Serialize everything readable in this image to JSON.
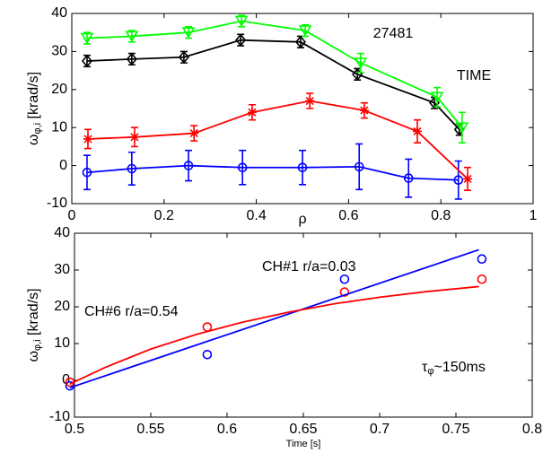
{
  "chart_data": [
    {
      "type": "line",
      "xlabel": "ρ",
      "ylabel": {
        "symbol": "ω",
        "subscript": "φ,i",
        "unit": " [krad/s]"
      },
      "xlim": [
        0,
        1
      ],
      "xticks": [
        0,
        0.2,
        0.4,
        0.6,
        0.8,
        1
      ],
      "ylim": [
        -10,
        40
      ],
      "yticks": [
        -10,
        0,
        10,
        20,
        30,
        40
      ],
      "annotations": [
        {
          "text": "27481",
          "color": "#000000"
        },
        {
          "text": "TIME",
          "color": "#000000"
        }
      ],
      "series": [
        {
          "color": "#0000ff",
          "marker": "circle",
          "x": [
            0.033,
            0.13,
            0.253,
            0.37,
            0.5,
            0.623,
            0.73,
            0.838
          ],
          "values": [
            -1.8,
            -0.8,
            0,
            -0.5,
            -0.5,
            -0.3,
            -3.3,
            -3.8
          ],
          "errors": [
            4.5,
            4.3,
            4,
            4.5,
            4.5,
            6,
            5,
            5
          ]
        },
        {
          "color": "#000000",
          "marker": "diamond",
          "x": [
            0.033,
            0.13,
            0.243,
            0.366,
            0.496,
            0.619,
            0.786,
            0.84
          ],
          "values": [
            27.5,
            28,
            28.5,
            33,
            32.5,
            24,
            16.5,
            9.5
          ],
          "errors": [
            1.5,
            1.5,
            1.5,
            1.5,
            1.5,
            1.5,
            1.5,
            1.5
          ]
        },
        {
          "color": "#00ff00",
          "marker": "triangle-down",
          "x": [
            0.033,
            0.13,
            0.253,
            0.368,
            0.506,
            0.626,
            0.792,
            0.846
          ],
          "values": [
            33.5,
            34,
            35,
            38,
            35.5,
            27,
            18,
            10
          ],
          "errors": [
            1.5,
            1.5,
            1.5,
            1.5,
            1.5,
            2.5,
            2.5,
            4
          ]
        },
        {
          "color": "#ff0000",
          "marker": "star",
          "x": [
            0.035,
            0.136,
            0.265,
            0.391,
            0.516,
            0.634,
            0.749,
            0.858
          ],
          "values": [
            7,
            7.5,
            8.5,
            14,
            17,
            14.5,
            9,
            -3.5
          ],
          "errors": [
            2.5,
            2.5,
            2,
            2,
            2,
            2,
            3,
            3
          ]
        }
      ]
    },
    {
      "type": "scatter",
      "xlabel": "Time [s]",
      "ylabel": {
        "symbol": "ω",
        "subscript": "φ,i",
        "unit": " [krad/s]"
      },
      "xlim": [
        0.5,
        0.8
      ],
      "xticks": [
        0.5,
        0.55,
        0.6,
        0.65,
        0.7,
        0.75,
        0.8
      ],
      "ylim": [
        -10,
        40
      ],
      "yticks": [
        -10,
        0,
        10,
        20,
        30,
        40
      ],
      "annotations": [
        {
          "text": "CH#1 r/a=0.03",
          "color": "#0000ff"
        },
        {
          "text": "CH#6 r/a=0.54",
          "color": "#ff0000"
        },
        {
          "text": "τ",
          "subscript": "φ",
          "rest": "~150ms",
          "color": "#ff0000"
        }
      ],
      "series": [
        {
          "color": "#0000ff",
          "marker": "circle",
          "linestyle": "none",
          "x": [
            0.497,
            0.587,
            0.677,
            0.767
          ],
          "values": [
            -1.5,
            7,
            27.5,
            33
          ]
        },
        {
          "color": "#ff0000",
          "marker": "circle",
          "linestyle": "none",
          "x": [
            0.497,
            0.587,
            0.677,
            0.767
          ],
          "values": [
            -0.5,
            14.5,
            24,
            27.5
          ]
        },
        {
          "color": "#0000ff",
          "marker": "none",
          "linestyle": "-",
          "x": [
            0.497,
            0.765
          ],
          "values": [
            -2,
            35.5
          ]
        },
        {
          "color": "#ff0000",
          "marker": "none",
          "linestyle": "-",
          "x": [
            0.497,
            0.52,
            0.55,
            0.58,
            0.61,
            0.64,
            0.67,
            0.7,
            0.73,
            0.765
          ],
          "values": [
            -1,
            3.5,
            8.5,
            12.5,
            15.8,
            18.5,
            20.8,
            22.6,
            24.1,
            25.5
          ]
        }
      ]
    }
  ]
}
